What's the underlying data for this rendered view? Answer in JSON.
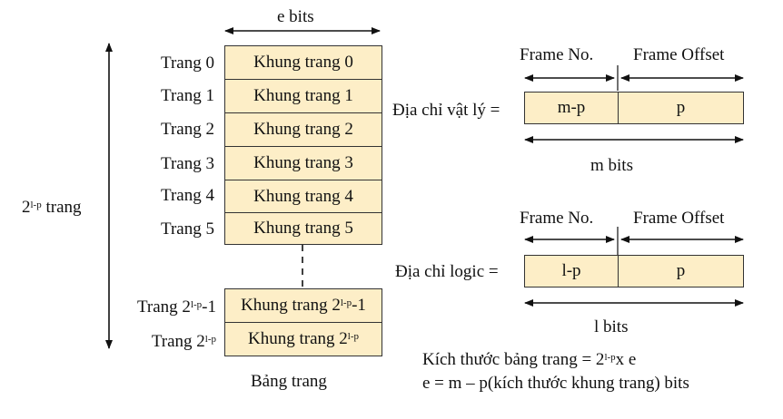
{
  "page_table": {
    "width_label": "e bits",
    "height_label": {
      "base": "2",
      "exp": "l-p",
      "unit": " trang"
    },
    "rows": [
      {
        "page": "Trang 0",
        "frame": "Khung trang 0"
      },
      {
        "page": "Trang 1",
        "frame": "Khung trang 1"
      },
      {
        "page": "Trang 2",
        "frame": "Khung trang 2"
      },
      {
        "page": "Trang 3",
        "frame": "Khung trang 3"
      },
      {
        "page": "Trang 4",
        "frame": "Khung trang 4"
      },
      {
        "page": "Trang 5",
        "frame": "Khung trang 5"
      }
    ],
    "last_rows": [
      {
        "page_pre": "Trang 2",
        "page_exp": "l-p",
        "page_post": "-1",
        "frame_pre": "Khung trang 2",
        "frame_exp": "l-p",
        "frame_post": "-1"
      },
      {
        "page_pre": "Trang 2",
        "page_exp": "l-p",
        "page_post": "",
        "frame_pre": "Khung trang 2",
        "frame_exp": "l-p",
        "frame_post": ""
      }
    ],
    "caption": "Bảng trang"
  },
  "physical_address": {
    "label": "Địa chỉ vật lý =",
    "field_header_1": "Frame No.",
    "field_header_2": "Frame Offset",
    "field_1": "m-p",
    "field_2": "p",
    "bits_label": "m bits"
  },
  "logical_address": {
    "label": "Địa chỉ logic =",
    "field_header_1": "Frame No.",
    "field_header_2": "Frame Offset",
    "field_1": "l-p",
    "field_2": "p",
    "bits_label": "l bits"
  },
  "notes": {
    "size_pre": "Kích thước bảng trang = 2",
    "size_exp": "l-p",
    "size_post": "x e",
    "e_def": "e = m – p(kích thước khung trang) bits"
  },
  "colors": {
    "cell_fill": "#fdeec7",
    "line": "#111111"
  }
}
